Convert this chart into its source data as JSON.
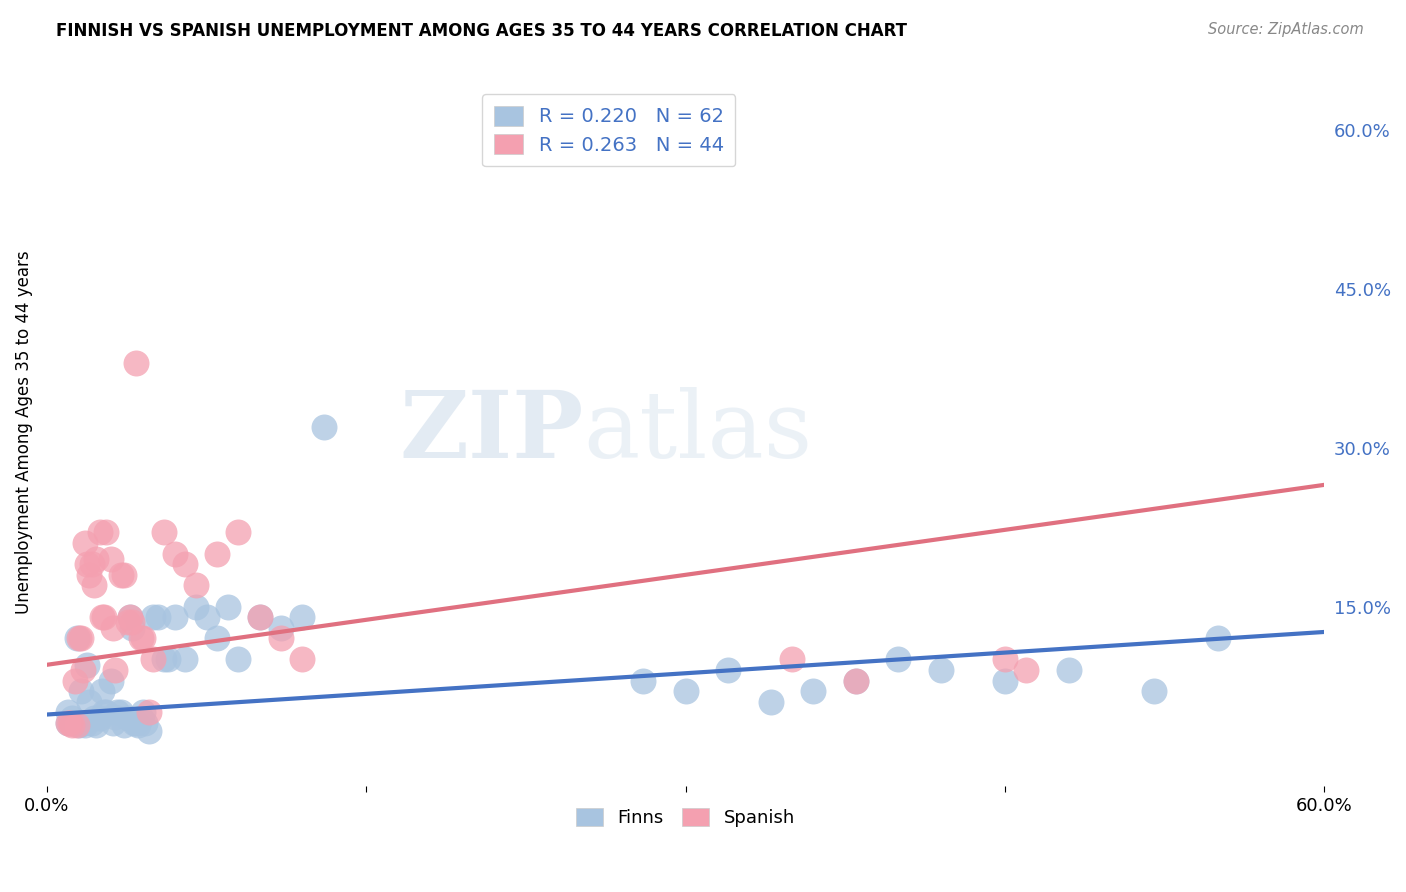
{
  "title": "FINNISH VS SPANISH UNEMPLOYMENT AMONG AGES 35 TO 44 YEARS CORRELATION CHART",
  "source": "Source: ZipAtlas.com",
  "ylabel": "Unemployment Among Ages 35 to 44 years",
  "right_yticks": [
    "60.0%",
    "45.0%",
    "30.0%",
    "15.0%"
  ],
  "right_ytick_vals": [
    0.6,
    0.45,
    0.3,
    0.15
  ],
  "xlim": [
    0.0,
    0.6
  ],
  "ylim": [
    -0.02,
    0.65
  ],
  "finns_color": "#a8c4e0",
  "spanish_color": "#f4a0b0",
  "finns_line_color": "#4472c4",
  "spanish_line_color": "#e07080",
  "legend_text_color": "#4472c4",
  "finns_R": 0.22,
  "finns_N": 62,
  "spanish_R": 0.263,
  "spanish_N": 44,
  "finns_x": [
    0.01,
    0.01,
    0.012,
    0.013,
    0.014,
    0.015,
    0.016,
    0.016,
    0.017,
    0.018,
    0.019,
    0.02,
    0.021,
    0.022,
    0.023,
    0.025,
    0.026,
    0.027,
    0.028,
    0.03,
    0.031,
    0.032,
    0.033,
    0.035,
    0.036,
    0.038,
    0.039,
    0.04,
    0.041,
    0.042,
    0.043,
    0.044,
    0.045,
    0.046,
    0.048,
    0.05,
    0.052,
    0.055,
    0.057,
    0.06,
    0.065,
    0.07,
    0.075,
    0.08,
    0.085,
    0.09,
    0.1,
    0.11,
    0.12,
    0.13,
    0.28,
    0.3,
    0.32,
    0.34,
    0.36,
    0.38,
    0.4,
    0.42,
    0.45,
    0.48,
    0.52,
    0.55
  ],
  "finns_y": [
    0.04,
    0.05,
    0.045,
    0.04,
    0.12,
    0.038,
    0.04,
    0.07,
    0.04,
    0.038,
    0.095,
    0.06,
    0.04,
    0.045,
    0.038,
    0.045,
    0.07,
    0.05,
    0.05,
    0.08,
    0.04,
    0.046,
    0.05,
    0.05,
    0.038,
    0.045,
    0.14,
    0.13,
    0.04,
    0.04,
    0.038,
    0.045,
    0.05,
    0.04,
    0.032,
    0.14,
    0.14,
    0.1,
    0.1,
    0.14,
    0.1,
    0.15,
    0.14,
    0.12,
    0.15,
    0.1,
    0.14,
    0.13,
    0.14,
    0.32,
    0.08,
    0.07,
    0.09,
    0.06,
    0.07,
    0.08,
    0.1,
    0.09,
    0.08,
    0.09,
    0.07,
    0.12
  ],
  "spanish_x": [
    0.01,
    0.011,
    0.012,
    0.013,
    0.014,
    0.015,
    0.016,
    0.017,
    0.018,
    0.019,
    0.02,
    0.021,
    0.022,
    0.023,
    0.025,
    0.026,
    0.027,
    0.028,
    0.03,
    0.031,
    0.032,
    0.035,
    0.036,
    0.038,
    0.039,
    0.04,
    0.042,
    0.044,
    0.045,
    0.048,
    0.05,
    0.055,
    0.06,
    0.065,
    0.07,
    0.08,
    0.09,
    0.1,
    0.11,
    0.12,
    0.35,
    0.38,
    0.45,
    0.46
  ],
  "spanish_y": [
    0.04,
    0.04,
    0.038,
    0.08,
    0.038,
    0.12,
    0.12,
    0.09,
    0.21,
    0.19,
    0.18,
    0.19,
    0.17,
    0.195,
    0.22,
    0.14,
    0.14,
    0.22,
    0.195,
    0.13,
    0.09,
    0.18,
    0.18,
    0.135,
    0.14,
    0.135,
    0.38,
    0.12,
    0.12,
    0.05,
    0.1,
    0.22,
    0.2,
    0.19,
    0.17,
    0.2,
    0.22,
    0.14,
    0.12,
    0.1,
    0.1,
    0.08,
    0.1,
    0.09
  ],
  "finns_trend_x": [
    0.0,
    0.6
  ],
  "finns_trend_y": [
    0.048,
    0.126
  ],
  "spanish_trend_x": [
    0.0,
    0.6
  ],
  "spanish_trend_y": [
    0.095,
    0.265
  ],
  "watermark_zip": "ZIP",
  "watermark_atlas": "atlas",
  "background_color": "#ffffff",
  "grid_color": "#cccccc"
}
